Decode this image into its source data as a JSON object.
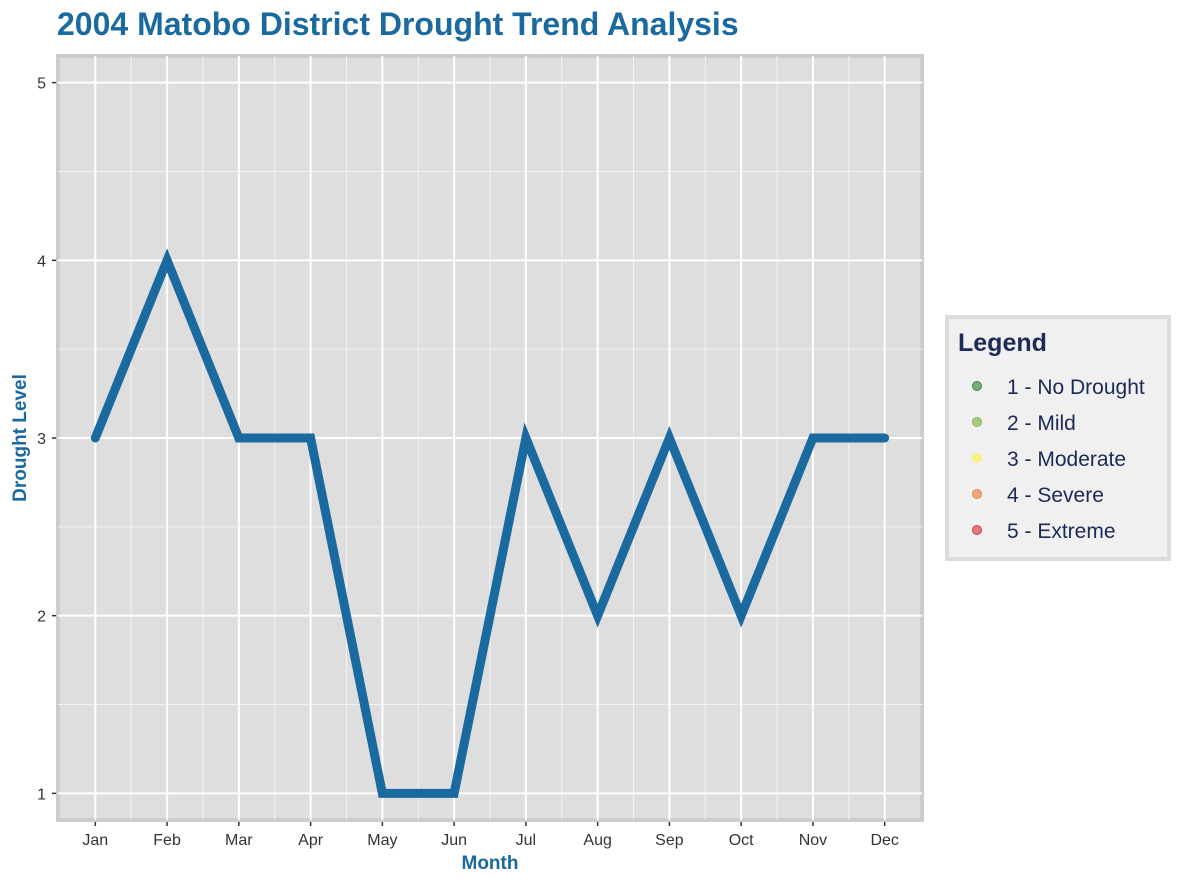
{
  "chart_data": {
    "type": "line",
    "title": "2004 Matobo District Drought Trend Analysis",
    "xlabel": "Month",
    "ylabel": "Drought Level",
    "categories": [
      "Jan",
      "Feb",
      "Mar",
      "Apr",
      "May",
      "Jun",
      "Jul",
      "Aug",
      "Sep",
      "Oct",
      "Nov",
      "Dec"
    ],
    "series": [
      {
        "values": [
          3,
          4,
          3,
          3,
          1,
          1,
          3,
          2,
          3,
          2,
          3,
          3
        ]
      }
    ],
    "ylim": [
      0.85,
      5.15
    ],
    "yticks": [
      1,
      2,
      3,
      4,
      5
    ],
    "grid": true,
    "legend": {
      "title": "Legend",
      "position": "right",
      "entries": [
        {
          "label": "1 - No Drought",
          "color": "#2e7d32"
        },
        {
          "label": "2 - Mild",
          "color": "#7cb342"
        },
        {
          "label": "3 - Moderate",
          "color": "#ffee58"
        },
        {
          "label": "4 - Severe",
          "color": "#e57c3a"
        },
        {
          "label": "5 - Extreme",
          "color": "#d32f2f"
        }
      ]
    }
  },
  "colors": {
    "line": "#1a6aa0",
    "title": "#1a6aa0",
    "panel_bg": "#dedede",
    "panel_border": "#cccccc",
    "grid_major": "#ffffff",
    "legend_bg": "#f0f0f0",
    "legend_text": "#1b2a57"
  }
}
